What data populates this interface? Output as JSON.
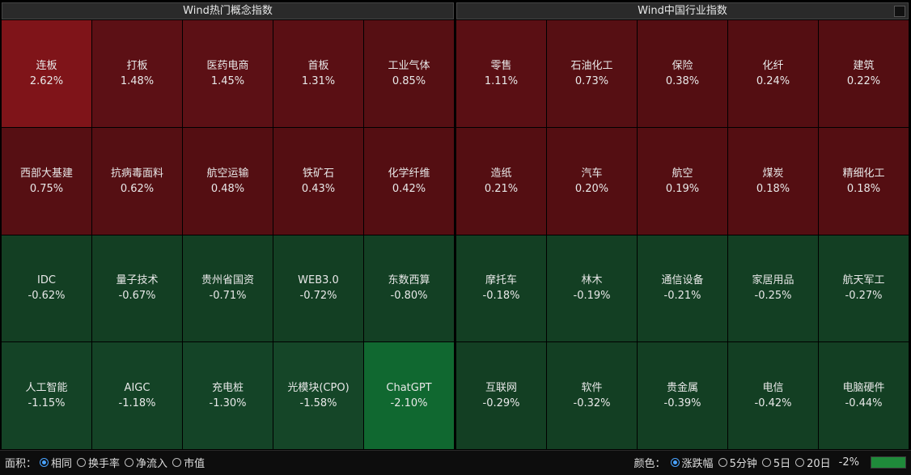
{
  "left_panel": {
    "title": "Wind热门概念指数",
    "tiles": [
      {
        "name": "连板",
        "change": "2.62%",
        "color": "#7f1419"
      },
      {
        "name": "打板",
        "change": "1.48%",
        "color": "#5c1015"
      },
      {
        "name": "医药电商",
        "change": "1.45%",
        "color": "#5c1015"
      },
      {
        "name": "首板",
        "change": "1.31%",
        "color": "#5a0f14"
      },
      {
        "name": "工业气体",
        "change": "0.85%",
        "color": "#560f13"
      },
      {
        "name": "西部大基建",
        "change": "0.75%",
        "color": "#560f13"
      },
      {
        "name": "抗病毒面料",
        "change": "0.62%",
        "color": "#550f13"
      },
      {
        "name": "航空运输",
        "change": "0.48%",
        "color": "#540e12"
      },
      {
        "name": "铁矿石",
        "change": "0.43%",
        "color": "#540e12"
      },
      {
        "name": "化学纤维",
        "change": "0.42%",
        "color": "#540e12"
      },
      {
        "name": "IDC",
        "change": "-0.62%",
        "color": "#133f23"
      },
      {
        "name": "量子技术",
        "change": "-0.67%",
        "color": "#133f23"
      },
      {
        "name": "贵州省国资",
        "change": "-0.71%",
        "color": "#133f23"
      },
      {
        "name": "WEB3.0",
        "change": "-0.72%",
        "color": "#133f23"
      },
      {
        "name": "东数西算",
        "change": "-0.80%",
        "color": "#134024"
      },
      {
        "name": "人工智能",
        "change": "-1.15%",
        "color": "#144326"
      },
      {
        "name": "AIGC",
        "change": "-1.18%",
        "color": "#144326"
      },
      {
        "name": "充电桩",
        "change": "-1.30%",
        "color": "#144427"
      },
      {
        "name": "光模块(CPO)",
        "change": "-1.58%",
        "color": "#154628"
      },
      {
        "name": "ChatGPT",
        "change": "-2.10%",
        "color": "#106830"
      }
    ]
  },
  "right_panel": {
    "title": "Wind中国行业指数",
    "tiles": [
      {
        "name": "零售",
        "change": "1.11%",
        "color": "#5a0f14"
      },
      {
        "name": "石油化工",
        "change": "0.73%",
        "color": "#560f13"
      },
      {
        "name": "保险",
        "change": "0.38%",
        "color": "#540e12"
      },
      {
        "name": "化纤",
        "change": "0.24%",
        "color": "#540e12"
      },
      {
        "name": "建筑",
        "change": "0.22%",
        "color": "#540e12"
      },
      {
        "name": "造纸",
        "change": "0.21%",
        "color": "#540e12"
      },
      {
        "name": "汽车",
        "change": "0.20%",
        "color": "#540e12"
      },
      {
        "name": "航空",
        "change": "0.19%",
        "color": "#540e12"
      },
      {
        "name": "煤炭",
        "change": "0.18%",
        "color": "#540e12"
      },
      {
        "name": "精细化工",
        "change": "0.18%",
        "color": "#540e12"
      },
      {
        "name": "摩托车",
        "change": "-0.18%",
        "color": "#133f23"
      },
      {
        "name": "林木",
        "change": "-0.19%",
        "color": "#133f23"
      },
      {
        "name": "通信设备",
        "change": "-0.21%",
        "color": "#133f23"
      },
      {
        "name": "家居用品",
        "change": "-0.25%",
        "color": "#133f23"
      },
      {
        "name": "航天军工",
        "change": "-0.27%",
        "color": "#133f23"
      },
      {
        "name": "互联网",
        "change": "-0.29%",
        "color": "#133f23"
      },
      {
        "name": "软件",
        "change": "-0.32%",
        "color": "#133f23"
      },
      {
        "name": "贵金属",
        "change": "-0.39%",
        "color": "#133f23"
      },
      {
        "name": "电信",
        "change": "-0.42%",
        "color": "#133f23"
      },
      {
        "name": "电脑硬件",
        "change": "-0.44%",
        "color": "#133f23"
      }
    ]
  },
  "status_bar": {
    "area_label": "面积：",
    "area_options": [
      {
        "label": "相同",
        "checked": true
      },
      {
        "label": "换手率",
        "checked": false
      },
      {
        "label": "净流入",
        "checked": false
      },
      {
        "label": "市值",
        "checked": false
      }
    ],
    "color_label": "颜色：",
    "color_options": [
      {
        "label": "涨跌幅",
        "checked": true
      },
      {
        "label": "5分钟",
        "checked": false
      },
      {
        "label": "5日",
        "checked": false
      },
      {
        "label": "20日",
        "checked": false
      }
    ],
    "legend_min": "-2%"
  }
}
